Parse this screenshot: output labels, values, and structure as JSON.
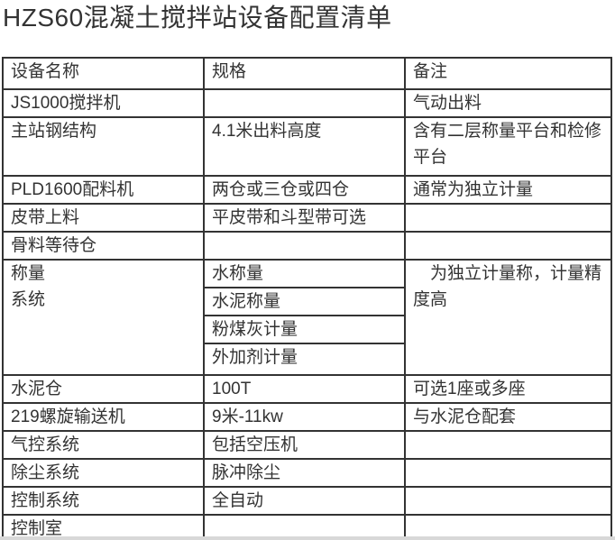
{
  "page": {
    "title": "HZS60混凝土搅拌站设备配置清单"
  },
  "colors": {
    "table_border": "#333333",
    "text": "#333333",
    "bottom_strip": "#d8d8d8"
  },
  "table": {
    "header": {
      "name": "设备名称",
      "spec": "规格",
      "note": "备注"
    },
    "rows_top": [
      {
        "name": "JS1000搅拌机",
        "spec": "",
        "note": "气动出料"
      },
      {
        "name": "主站钢结构",
        "spec": "4.1米出料高度",
        "note": "含有二层称量平台和检修平台"
      },
      {
        "name": "PLD1600配料机",
        "spec": "两仓或三仓或四仓",
        "note": "通常为独立计量"
      },
      {
        "name": "皮带上料",
        "spec": "平皮带和斗型带可选",
        "note": ""
      },
      {
        "name": "骨料等待仓",
        "spec": "",
        "note": ""
      }
    ],
    "weighing": {
      "name": "称量\n系统",
      "specs": [
        "水称量",
        "水泥称量",
        "粉煤灰计量",
        "外加剂计量"
      ],
      "note": "　为独立计量称，计量精度高"
    },
    "rows_bottom": [
      {
        "name": "水泥仓",
        "spec": "100T",
        "note": "可选1座或多座"
      },
      {
        "name": "219螺旋输送机",
        "spec": "9米-11kw",
        "note": "与水泥仓配套"
      },
      {
        "name": "气控系统",
        "spec": "包括空压机",
        "note": ""
      },
      {
        "name": "除尘系统",
        "spec": "脉冲除尘",
        "note": ""
      },
      {
        "name": "控制系统",
        "spec": "全自动",
        "note": ""
      },
      {
        "name": "控制室",
        "spec": "",
        "note": ""
      }
    ]
  }
}
